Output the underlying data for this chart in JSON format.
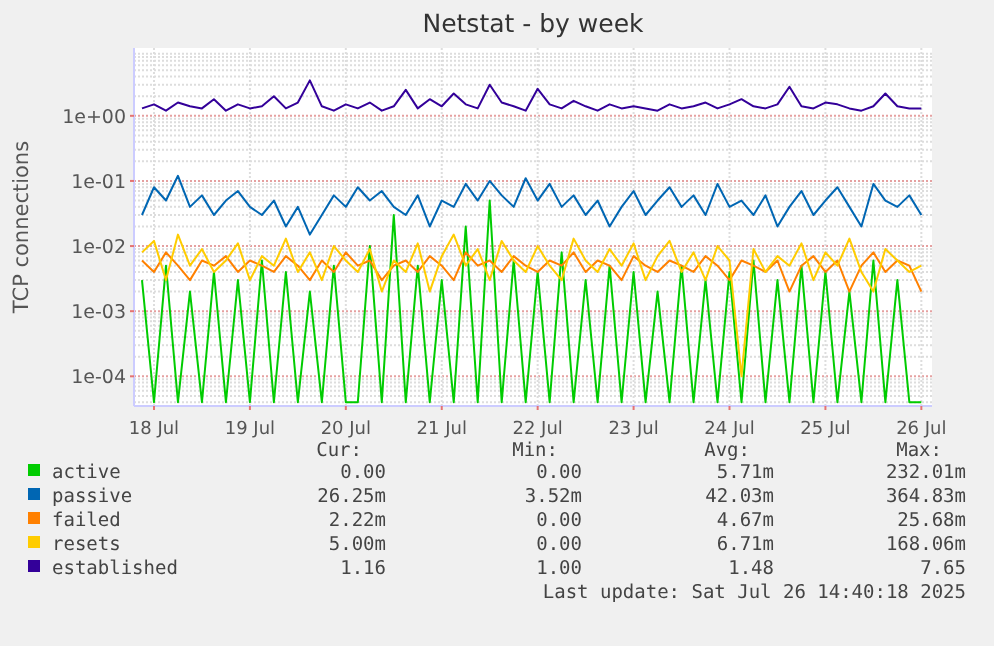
{
  "chart_data": {
    "type": "line",
    "title": "Netstat - by week",
    "ylabel": "TCP connections",
    "log": true,
    "grid": true,
    "legend": "bottom",
    "line_style": "solid",
    "marker": "none",
    "xlim": [
      "2025-07-18T07:00",
      "2025-07-26T14:40"
    ],
    "xticks": [
      {
        "value": "2025-07-18T12:00",
        "label": "18 Jul"
      },
      {
        "value": "2025-07-19T12:00",
        "label": "19 Jul"
      },
      {
        "value": "2025-07-20T12:00",
        "label": "20 Jul"
      },
      {
        "value": "2025-07-21T12:00",
        "label": "21 Jul"
      },
      {
        "value": "2025-07-22T12:00",
        "label": "22 Jul"
      },
      {
        "value": "2025-07-23T12:00",
        "label": "23 Jul"
      },
      {
        "value": "2025-07-24T12:00",
        "label": "24 Jul"
      },
      {
        "value": "2025-07-25T12:00",
        "label": "25 Jul"
      },
      {
        "value": "2025-07-26T12:00",
        "label": "26 Jul"
      }
    ],
    "ylim": [
      3.5e-05,
      11
    ],
    "yticks": [
      {
        "value": 0.0001,
        "label": "1e-04"
      },
      {
        "value": 0.001,
        "label": "1e-03"
      },
      {
        "value": 0.01,
        "label": "1e-02"
      },
      {
        "value": 0.1,
        "label": "1e-01"
      },
      {
        "value": 1,
        "label": "1e+00"
      }
    ],
    "x": [
      "2025-07-18T09:00",
      "2025-07-18T12:00",
      "2025-07-18T15:00",
      "2025-07-18T18:00",
      "2025-07-18T21:00",
      "2025-07-19T00:00",
      "2025-07-19T03:00",
      "2025-07-19T06:00",
      "2025-07-19T09:00",
      "2025-07-19T12:00",
      "2025-07-19T15:00",
      "2025-07-19T18:00",
      "2025-07-19T21:00",
      "2025-07-20T00:00",
      "2025-07-20T03:00",
      "2025-07-20T06:00",
      "2025-07-20T09:00",
      "2025-07-20T12:00",
      "2025-07-20T15:00",
      "2025-07-20T18:00",
      "2025-07-20T21:00",
      "2025-07-21T00:00",
      "2025-07-21T03:00",
      "2025-07-21T06:00",
      "2025-07-21T09:00",
      "2025-07-21T12:00",
      "2025-07-21T15:00",
      "2025-07-21T18:00",
      "2025-07-21T21:00",
      "2025-07-22T00:00",
      "2025-07-22T03:00",
      "2025-07-22T06:00",
      "2025-07-22T09:00",
      "2025-07-22T12:00",
      "2025-07-22T15:00",
      "2025-07-22T18:00",
      "2025-07-22T21:00",
      "2025-07-23T00:00",
      "2025-07-23T03:00",
      "2025-07-23T06:00",
      "2025-07-23T09:00",
      "2025-07-23T12:00",
      "2025-07-23T15:00",
      "2025-07-23T18:00",
      "2025-07-23T21:00",
      "2025-07-24T00:00",
      "2025-07-24T03:00",
      "2025-07-24T06:00",
      "2025-07-24T09:00",
      "2025-07-24T12:00",
      "2025-07-24T15:00",
      "2025-07-24T18:00",
      "2025-07-24T21:00",
      "2025-07-25T00:00",
      "2025-07-25T03:00",
      "2025-07-25T06:00",
      "2025-07-25T09:00",
      "2025-07-25T12:00",
      "2025-07-25T15:00",
      "2025-07-25T18:00",
      "2025-07-25T21:00",
      "2025-07-26T00:00",
      "2025-07-26T03:00",
      "2025-07-26T06:00",
      "2025-07-26T09:00",
      "2025-07-26T12:00"
    ],
    "series": [
      {
        "name": "active",
        "color": "#00cc00",
        "values": [
          0.003,
          4e-05,
          0.005,
          4e-05,
          0.002,
          4e-05,
          0.004,
          4e-05,
          0.003,
          4e-05,
          0.006,
          4e-05,
          0.004,
          4e-05,
          0.002,
          4e-05,
          0.005,
          4e-05,
          4e-05,
          0.01,
          4e-05,
          0.03,
          4e-05,
          0.005,
          4e-05,
          0.003,
          4e-05,
          0.02,
          4e-05,
          0.05,
          4e-05,
          0.006,
          4e-05,
          0.004,
          4e-05,
          0.008,
          4e-05,
          0.003,
          4e-05,
          0.005,
          4e-05,
          0.004,
          4e-05,
          0.002,
          4e-05,
          0.005,
          4e-05,
          0.003,
          4e-05,
          0.004,
          4e-05,
          0.006,
          4e-05,
          0.003,
          4e-05,
          0.005,
          4e-05,
          0.004,
          4e-05,
          0.002,
          4e-05,
          0.006,
          4e-05,
          0.003,
          4e-05,
          4e-05
        ]
      },
      {
        "name": "passive",
        "color": "#0066b3",
        "values": [
          0.03,
          0.08,
          0.05,
          0.12,
          0.04,
          0.06,
          0.03,
          0.05,
          0.07,
          0.04,
          0.03,
          0.05,
          0.02,
          0.04,
          0.015,
          0.03,
          0.06,
          0.04,
          0.08,
          0.05,
          0.07,
          0.04,
          0.03,
          0.06,
          0.02,
          0.05,
          0.04,
          0.09,
          0.05,
          0.1,
          0.06,
          0.04,
          0.11,
          0.05,
          0.09,
          0.04,
          0.06,
          0.03,
          0.05,
          0.02,
          0.04,
          0.07,
          0.03,
          0.05,
          0.08,
          0.04,
          0.06,
          0.03,
          0.09,
          0.04,
          0.05,
          0.03,
          0.06,
          0.02,
          0.04,
          0.07,
          0.03,
          0.05,
          0.08,
          0.04,
          0.02,
          0.09,
          0.05,
          0.04,
          0.06,
          0.03
        ]
      },
      {
        "name": "failed",
        "color": "#ff8000",
        "values": [
          0.006,
          0.004,
          0.008,
          0.005,
          0.003,
          0.006,
          0.005,
          0.007,
          0.004,
          0.006,
          0.005,
          0.004,
          0.007,
          0.005,
          0.003,
          0.006,
          0.004,
          0.008,
          0.005,
          0.006,
          0.003,
          0.005,
          0.006,
          0.004,
          0.007,
          0.005,
          0.003,
          0.008,
          0.005,
          0.006,
          0.004,
          0.007,
          0.005,
          0.004,
          0.006,
          0.005,
          0.008,
          0.004,
          0.006,
          0.005,
          0.003,
          0.007,
          0.005,
          0.004,
          0.006,
          0.005,
          0.004,
          0.007,
          0.005,
          0.003,
          0.006,
          0.005,
          0.004,
          0.006,
          0.002,
          0.005,
          0.007,
          0.004,
          0.006,
          0.002,
          0.005,
          0.008,
          0.004,
          0.006,
          0.005,
          0.002
        ]
      },
      {
        "name": "resets",
        "color": "#ffcc00",
        "values": [
          0.008,
          0.012,
          0.003,
          0.015,
          0.005,
          0.009,
          0.004,
          0.006,
          0.011,
          0.003,
          0.007,
          0.005,
          0.013,
          0.004,
          0.008,
          0.003,
          0.01,
          0.006,
          0.004,
          0.009,
          0.002,
          0.006,
          0.004,
          0.011,
          0.002,
          0.007,
          0.015,
          0.005,
          0.009,
          0.003,
          0.012,
          0.006,
          0.004,
          0.01,
          0.005,
          0.003,
          0.013,
          0.006,
          0.004,
          0.009,
          0.005,
          0.011,
          0.003,
          0.007,
          0.012,
          0.004,
          0.008,
          0.003,
          0.01,
          0.006,
          0.0001,
          0.009,
          0.004,
          0.007,
          0.005,
          0.011,
          0.003,
          0.008,
          0.005,
          0.013,
          0.004,
          0.002,
          0.009,
          0.006,
          0.004,
          0.005
        ]
      },
      {
        "name": "established",
        "color": "#330099",
        "values": [
          1.3,
          1.5,
          1.2,
          1.6,
          1.4,
          1.3,
          1.8,
          1.2,
          1.5,
          1.3,
          1.4,
          2.0,
          1.3,
          1.6,
          3.5,
          1.4,
          1.2,
          1.5,
          1.3,
          1.6,
          1.2,
          1.4,
          2.5,
          1.3,
          1.8,
          1.4,
          2.2,
          1.5,
          1.3,
          3.0,
          1.6,
          1.4,
          1.2,
          2.6,
          1.5,
          1.3,
          1.7,
          1.4,
          1.2,
          1.5,
          1.3,
          1.4,
          1.3,
          1.2,
          1.5,
          1.3,
          1.4,
          1.6,
          1.3,
          1.5,
          1.8,
          1.4,
          1.3,
          1.5,
          2.8,
          1.4,
          1.3,
          1.6,
          1.5,
          1.3,
          1.2,
          1.4,
          2.2,
          1.4,
          1.3,
          1.3
        ]
      }
    ],
    "annotations": [
      "Cur:",
      "Min:",
      "Avg:",
      "Max:",
      "0.00",
      "0.00",
      "5.71m",
      "232.01m",
      "26.25m",
      "3.52m",
      "42.03m",
      "364.83m",
      "2.22m",
      "0.00",
      "4.67m",
      "25.68m",
      "5.00m",
      "0.00",
      "6.71m",
      "168.06m",
      "1.16",
      "1.00",
      "1.48",
      "7.65",
      "Last update: Sat Jul 26 14:40:18 2025"
    ]
  }
}
